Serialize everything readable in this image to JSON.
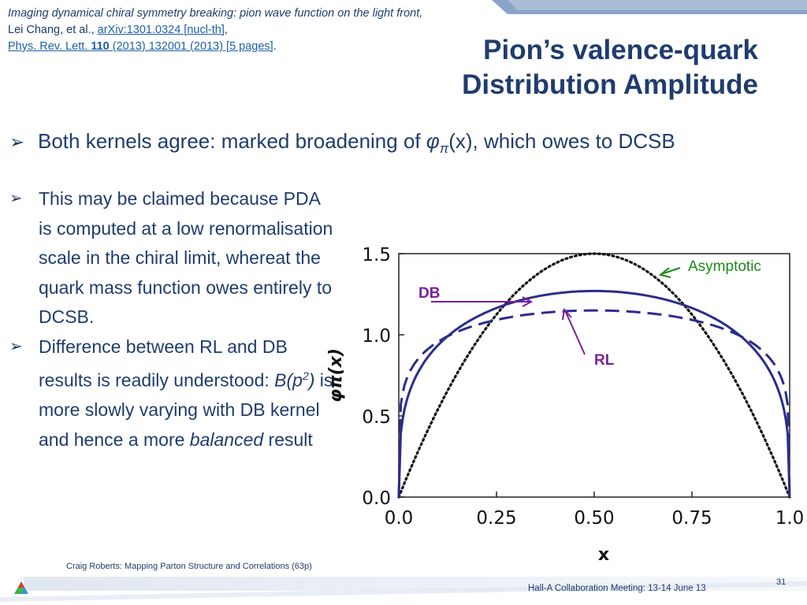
{
  "citation": {
    "title_italic": "Imaging dynamical chiral symmetry breaking: pion wave function on the light front,",
    "authors": "Lei Chang, et al.,",
    "arxiv": "arXiv:1301.0324 [nucl-th]",
    "journal_prefix": "Phys. Rev. Lett.",
    "volume": "110",
    "journal_rest": "(2013) 132001 (2013) [5 pages]",
    "period": "."
  },
  "title": {
    "line1": "Pion’s valence-quark",
    "line2": "Distribution Amplitude"
  },
  "bullet_main": {
    "prefix": "Both kernels agree: marked broadening of ",
    "phi": "φ",
    "sub": "π",
    "suffix": "(x), which owes to DCSB"
  },
  "sub_bullets": {
    "item1": "This may be claimed because PDA is computed at a low renormalisation scale in the chiral limit, whereat the quark mass function owes entirely to DCSB.",
    "item2_a": "Difference between RL and DB results is readily understood: ",
    "item2_b": "B(p",
    "item2_sup": "2",
    "item2_c": ")",
    "item2_d": " is more slowly varying with DB kernel and hence a more ",
    "item2_e": "balanced",
    "item2_f": " result"
  },
  "colors": {
    "navy": "#1f3c6e",
    "curve_blue": "#2b2d8e",
    "purple": "#7a1fa0",
    "green": "#1e8a1e"
  },
  "chart_data": {
    "type": "line",
    "xlabel": "x",
    "ylabel": "φπ(x)",
    "xlim": [
      0,
      1
    ],
    "ylim": [
      0,
      1.5
    ],
    "x_ticks": [
      "0.0",
      "0.25",
      "0.50",
      "0.75",
      "1.0"
    ],
    "y_ticks": [
      "0.0",
      "0.5",
      "1.0",
      "1.5"
    ],
    "series": [
      {
        "name": "Asymptotic",
        "style": "dotted",
        "formula": "6x(1-x)",
        "peak": 1.5
      },
      {
        "name": "RL",
        "style": "solid",
        "peak": 1.27
      },
      {
        "name": "DB",
        "style": "dashed",
        "peak": 1.15
      }
    ],
    "annotations": [
      "Asymptotic",
      "DB",
      "RL"
    ]
  },
  "footer": {
    "author": "Craig Roberts: Mapping Parton Structure and Correlations (63p)",
    "meeting": "Hall-A Collaboration Meeting: 13-14 June 13",
    "page": "31"
  }
}
